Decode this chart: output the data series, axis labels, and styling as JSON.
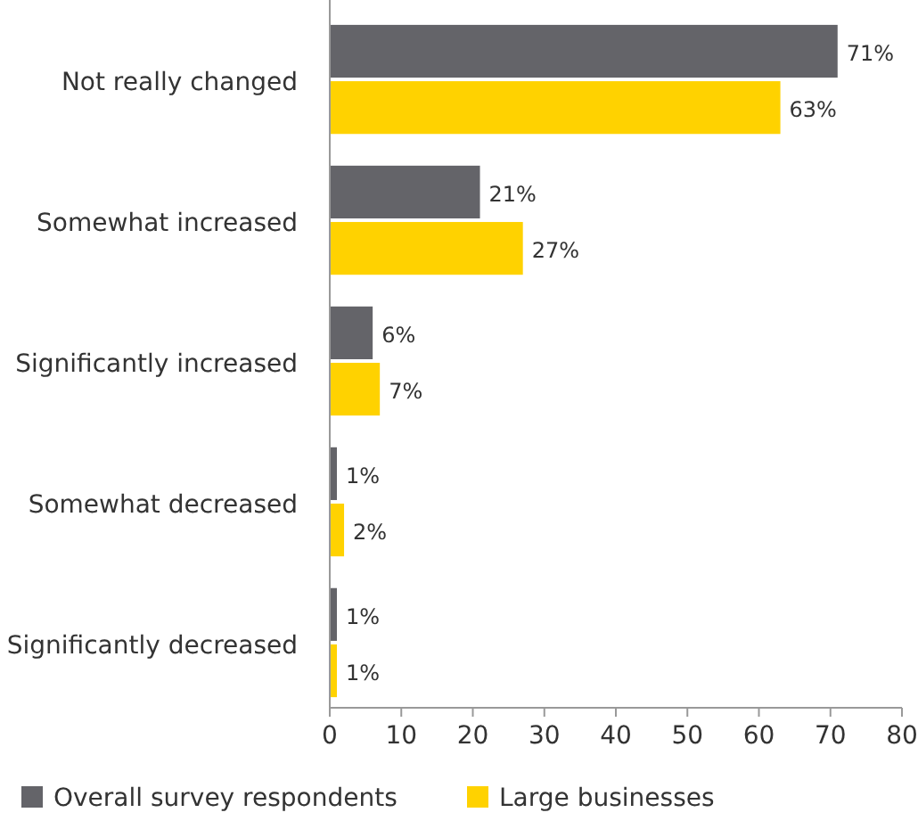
{
  "chart_data": {
    "type": "bar",
    "orientation": "horizontal",
    "categories": [
      "Not really changed",
      "Somewhat increased",
      "Significantly increased",
      "Somewhat decreased",
      "Significantly decreased"
    ],
    "series": [
      {
        "name": "Overall survey respondents",
        "color": "#646469",
        "values": [
          71,
          21,
          6,
          1,
          1
        ],
        "value_labels": [
          "71%",
          "21%",
          "6%",
          "1%",
          "1%"
        ]
      },
      {
        "name": "Large businesses",
        "color": "#ffd200",
        "values": [
          63,
          27,
          7,
          2,
          1
        ],
        "value_labels": [
          "63%",
          "27%",
          "7%",
          "2%",
          "1%"
        ]
      }
    ],
    "xlim": [
      0,
      80
    ],
    "xticks": [
      0,
      10,
      20,
      30,
      40,
      50,
      60,
      70,
      80
    ],
    "grid": false,
    "legend": "bottom"
  }
}
